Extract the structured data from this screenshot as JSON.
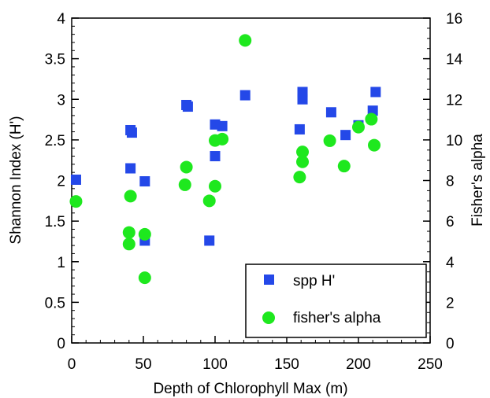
{
  "chart_data": {
    "type": "scatter",
    "xlabel": "Depth of Chlorophyll Max (m)",
    "ylabel": "Shannon Index  (H')",
    "y2label": "Fisher's alpha",
    "xlim": [
      0,
      250
    ],
    "ylim": [
      0,
      4
    ],
    "y2lim": [
      0,
      16
    ],
    "xticks": [
      0,
      50,
      100,
      150,
      200,
      250
    ],
    "yticks": [
      0,
      0.5,
      1,
      1.5,
      2,
      2.5,
      3,
      3.5,
      4
    ],
    "y2ticks": [
      0,
      2,
      4,
      6,
      8,
      10,
      12,
      14,
      16
    ],
    "legend_position": "bottom-right",
    "series": [
      {
        "name": "spp H'",
        "axis": "left",
        "marker": "square",
        "color": "#2448e8",
        "points": [
          [
            3,
            2.01
          ],
          [
            41,
            2.62
          ],
          [
            42,
            2.59
          ],
          [
            41,
            2.15
          ],
          [
            51,
            1.99
          ],
          [
            51,
            1.26
          ],
          [
            80,
            2.93
          ],
          [
            81,
            2.91
          ],
          [
            100,
            2.69
          ],
          [
            105,
            2.67
          ],
          [
            100,
            2.3
          ],
          [
            96,
            1.26
          ],
          [
            121,
            3.05
          ],
          [
            159,
            2.63
          ],
          [
            161,
            3.09
          ],
          [
            161,
            3.0
          ],
          [
            181,
            2.84
          ],
          [
            191,
            2.56
          ],
          [
            200,
            2.68
          ],
          [
            210,
            2.86
          ],
          [
            212,
            3.09
          ]
        ]
      },
      {
        "name": "fisher's alpha",
        "axis": "right",
        "marker": "circle",
        "color": "#1ee81e",
        "points": [
          [
            3,
            6.97
          ],
          [
            41,
            7.23
          ],
          [
            40,
            5.44
          ],
          [
            40,
            4.87
          ],
          [
            51,
            5.35
          ],
          [
            51,
            3.21
          ],
          [
            79,
            7.79
          ],
          [
            80,
            8.66
          ],
          [
            96,
            7.0
          ],
          [
            100,
            7.72
          ],
          [
            100,
            9.97
          ],
          [
            105,
            10.04
          ],
          [
            121,
            14.9
          ],
          [
            159,
            8.17
          ],
          [
            161,
            9.41
          ],
          [
            161,
            8.92
          ],
          [
            180,
            9.96
          ],
          [
            190,
            8.71
          ],
          [
            200,
            10.63
          ],
          [
            209,
            11.02
          ],
          [
            211,
            9.74
          ]
        ]
      }
    ]
  }
}
